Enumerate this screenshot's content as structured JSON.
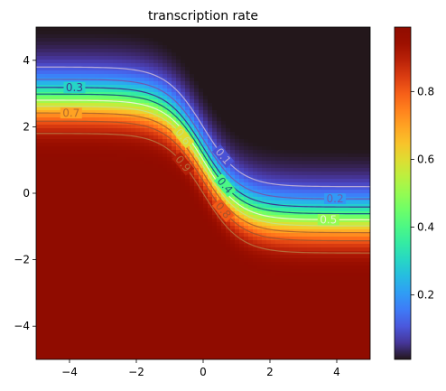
{
  "chart_data": {
    "type": "heatmap",
    "title": "transcription rate",
    "xlabel": "",
    "ylabel": "",
    "xlim": [
      -5,
      5
    ],
    "ylim": [
      -5,
      5
    ],
    "x_ticks": [
      -4,
      -2,
      0,
      2,
      4
    ],
    "y_ticks": [
      -4,
      -2,
      0,
      2,
      4
    ],
    "x_tick_labels": [
      "−4",
      "−2",
      "0",
      "2",
      "4"
    ],
    "y_tick_labels": [
      "−4",
      "−2",
      "0",
      "2",
      "4"
    ],
    "grid": false,
    "colormap": "turbo",
    "value_range": [
      0.01,
      0.99
    ],
    "colorbar": {
      "ticks": [
        0.2,
        0.4,
        0.6,
        0.8
      ],
      "tick_labels": [
        "0.2",
        "0.4",
        "0.6",
        "0.8"
      ],
      "position": "right"
    },
    "surface": {
      "description_of_field": "transition boundary y_c(x) = 2.8 - 1.8*(1+tanh(0.9*x)); value = 1/(1+exp(2.2*(y - y_c)))",
      "boundary_center": 2.8,
      "boundary_drop": 1.8,
      "boundary_steepness": 0.9,
      "transition_steepness": 2.2
    },
    "contour_levels": [
      0.1,
      0.2,
      0.3,
      0.4,
      0.5,
      0.6,
      0.7,
      0.8,
      0.9
    ],
    "contour_colors": {
      "0.1": "#b7a9d6",
      "0.2": "#6f5ab0",
      "0.3": "#3b3a8f",
      "0.4": "#1d5f7a",
      "0.5": "#e6f5d0",
      "0.6": "#c9e27c",
      "0.7": "#b56a2a",
      "0.8": "#a8552a",
      "0.9": "#b56a3a"
    },
    "contour_labels": [
      {
        "text": "0.1",
        "x": 0.6,
        "level": 0.1
      },
      {
        "text": "0.2",
        "x": 3.95,
        "level": 0.2
      },
      {
        "text": "0.3",
        "x": -3.85,
        "level": 0.3
      },
      {
        "text": "0.4",
        "x": 0.65,
        "level": 0.4
      },
      {
        "text": "0.5",
        "x": 3.75,
        "level": 0.5
      },
      {
        "text": "0.6",
        "x": -0.6,
        "level": 0.6
      },
      {
        "text": "0.7",
        "x": -3.95,
        "level": 0.7
      },
      {
        "text": "0.8",
        "x": 0.6,
        "level": 0.8
      },
      {
        "text": "0.9",
        "x": -0.6,
        "level": 0.9
      }
    ]
  }
}
